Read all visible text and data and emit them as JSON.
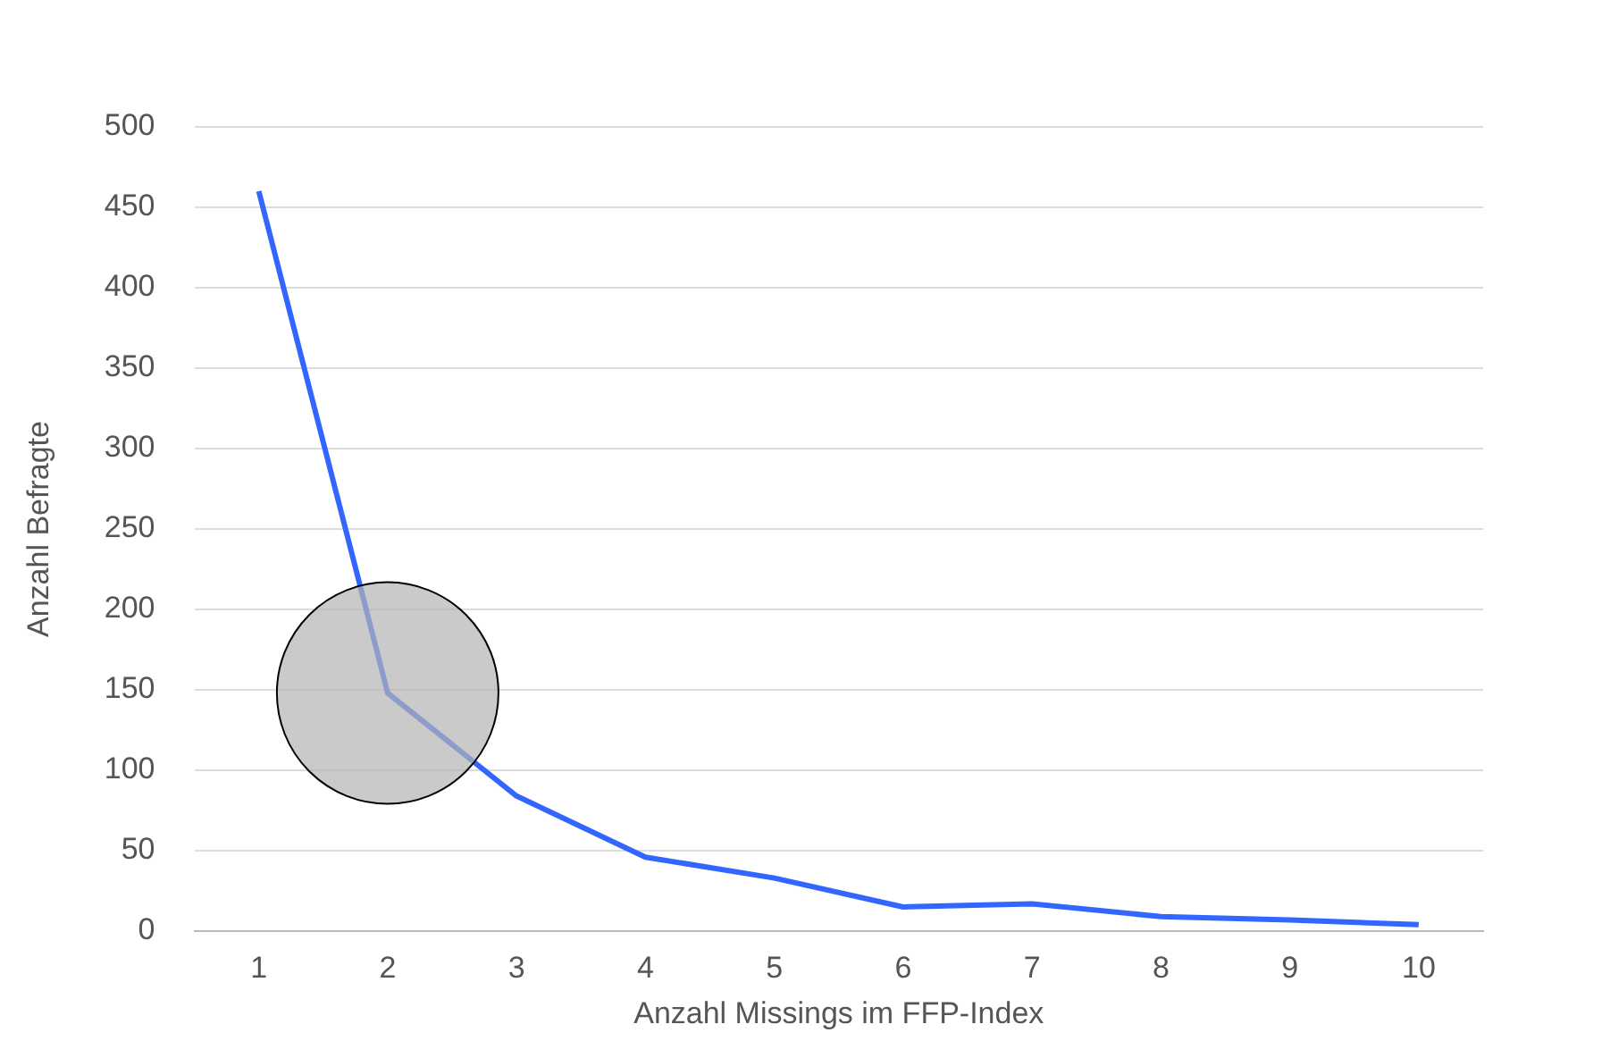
{
  "chart_data": {
    "type": "line",
    "xlabel": "Anzahl Missings im FFP-Index",
    "ylabel": "Anzahl Befragte",
    "categories": [
      "1",
      "2",
      "3",
      "4",
      "5",
      "6",
      "7",
      "8",
      "9",
      "10"
    ],
    "series": [
      {
        "color": "#3366ff",
        "values": [
          460,
          148,
          84,
          46,
          33,
          15,
          17,
          9,
          7,
          4
        ]
      },
      {
        "type": "scatter",
        "x": [
          "2"
        ],
        "color": "#b4b4b4",
        "marker": "circle",
        "values": [
          148
        ]
      }
    ],
    "ylim": [
      0,
      500
    ],
    "yticks": [
      0,
      50,
      100,
      150,
      200,
      250,
      300,
      350,
      400,
      450,
      500
    ],
    "grid": "y",
    "legend": false,
    "marker": "none",
    "line_style": "solid"
  }
}
